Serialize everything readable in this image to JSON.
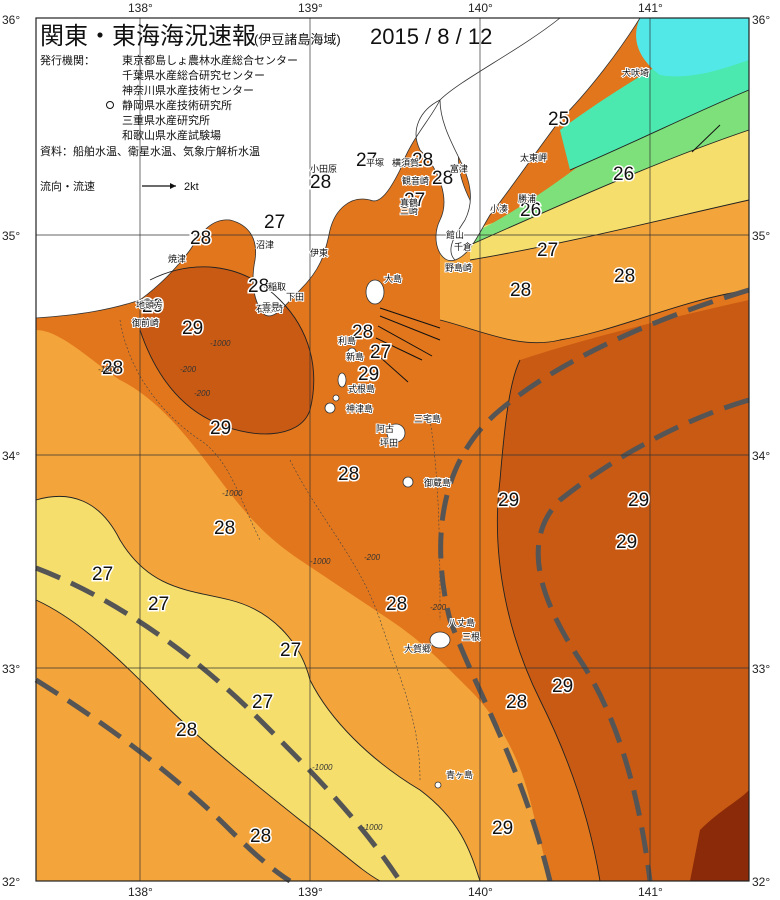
{
  "header": {
    "title": "関東・東海海況速報",
    "subtitle": "(伊豆諸島海域)",
    "date": "2015 / 8 / 12",
    "issuers_label": "発行機関：",
    "issuers": [
      "東京都島しょ農林水産総合センター",
      "千葉県水産総合研究センター",
      "神奈川県水産技術センター",
      "静岡県水産技術研究所",
      "三重県水産研究所",
      "和歌山県水産試験場"
    ],
    "sources": "資料：船舶水温、衛星水温、気象庁解析水温"
  },
  "legend": {
    "current_label": "流向・流速",
    "arrow_value": "2kt"
  },
  "axes": {
    "lon_labels": [
      "138°",
      "139°",
      "140°",
      "141°"
    ],
    "lat_labels": [
      "36°",
      "35°",
      "34°",
      "33°",
      "32°"
    ]
  },
  "colors": {
    "t25": "#4be8b0",
    "t26": "#7ee07a",
    "t27": "#f5de6c",
    "t28": "#f3a43a",
    "t29": "#e2761c",
    "t29b": "#c85a14",
    "t30": "#8a2a08",
    "cold": "#52e8e8",
    "land": "#ffffff",
    "kuroshio": "#555555"
  },
  "temperature_labels": [
    "25",
    "26",
    "26",
    "27",
    "27",
    "27",
    "27",
    "27",
    "27",
    "27",
    "27",
    "27",
    "28",
    "28",
    "28",
    "28",
    "28",
    "28",
    "28",
    "28",
    "28",
    "28",
    "28",
    "28",
    "28",
    "28",
    "28",
    "29",
    "29",
    "29",
    "29",
    "29",
    "29",
    "29",
    "29",
    "29"
  ],
  "places": [
    "犬吠埼",
    "太東岬",
    "勝浦",
    "小湊",
    "館山",
    "千倉",
    "野島崎",
    "大島",
    "横須賀",
    "観音崎",
    "富津",
    "三崎",
    "平塚",
    "小田原",
    "真鶴",
    "伊東",
    "稲取",
    "下田",
    "石廊崎",
    "沼津",
    "焼津",
    "地頭方",
    "御前崎",
    "雲見",
    "利島",
    "式根島",
    "神津島",
    "三宅島",
    "御蔵島",
    "新島",
    "八丈島",
    "三根",
    "大賀郷",
    "青ヶ島",
    "坪田",
    "阿古"
  ],
  "depth_labels": [
    "-1000",
    "-200",
    "-1000",
    "-200",
    "-1000",
    "-1000",
    "-200",
    "-1000",
    "-1000",
    "-200"
  ]
}
